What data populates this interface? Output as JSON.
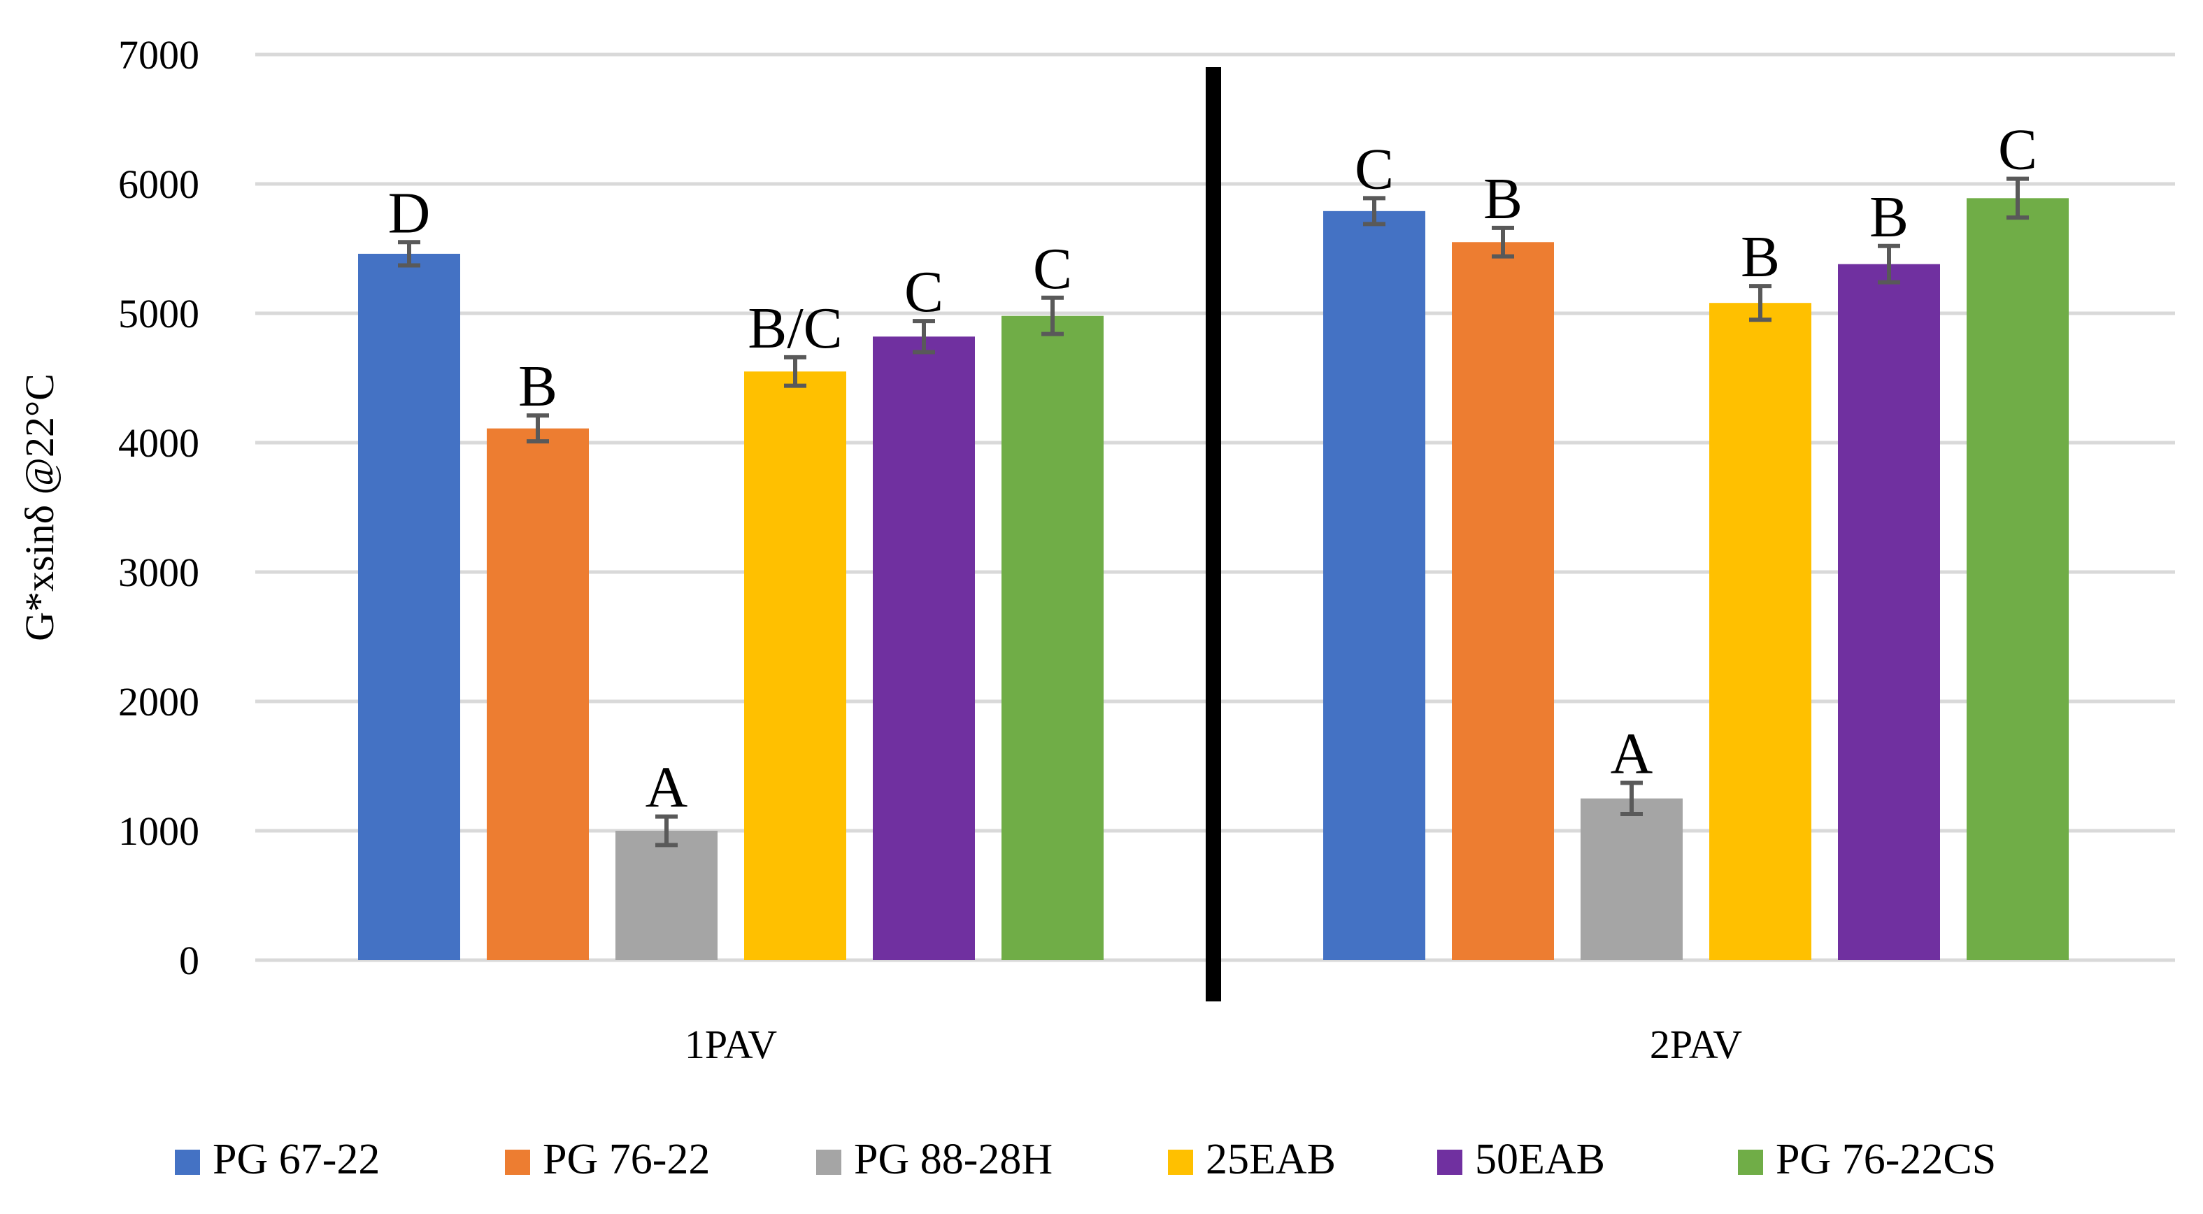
{
  "chart_data": {
    "type": "bar",
    "title": "",
    "xlabel": "",
    "ylabel": "G*xsinδ @22°C",
    "ylim": [
      0,
      7000
    ],
    "yticks": [
      0,
      1000,
      2000,
      3000,
      4000,
      5000,
      6000,
      7000
    ],
    "grid": true,
    "legend_position": "bottom",
    "categories": [
      "1PAV",
      "2PAV"
    ],
    "series": [
      {
        "name": "PG 67-22",
        "color": "#4472C4",
        "values": [
          5460,
          5790
        ],
        "errors": [
          90,
          100
        ],
        "labels": [
          "D",
          "C"
        ]
      },
      {
        "name": "PG 76-22",
        "color": "#ED7D31",
        "values": [
          4110,
          5550
        ],
        "errors": [
          100,
          110
        ],
        "labels": [
          "B",
          "B"
        ]
      },
      {
        "name": "PG 88-28H",
        "color": "#A5A5A5",
        "values": [
          1000,
          1250
        ],
        "errors": [
          110,
          120
        ],
        "labels": [
          "A",
          "A"
        ]
      },
      {
        "name": "25EAB",
        "color": "#FFC000",
        "values": [
          4550,
          5080
        ],
        "errors": [
          110,
          130
        ],
        "labels": [
          "B/C",
          "B"
        ]
      },
      {
        "name": "50EAB",
        "color": "#7030A0",
        "values": [
          4820,
          5380
        ],
        "errors": [
          120,
          140
        ],
        "labels": [
          "C",
          "B"
        ]
      },
      {
        "name": "PG 76-22CS",
        "color": "#70AD47",
        "values": [
          4980,
          5890
        ],
        "errors": [
          140,
          150
        ],
        "labels": [
          "C",
          "C"
        ]
      }
    ]
  }
}
